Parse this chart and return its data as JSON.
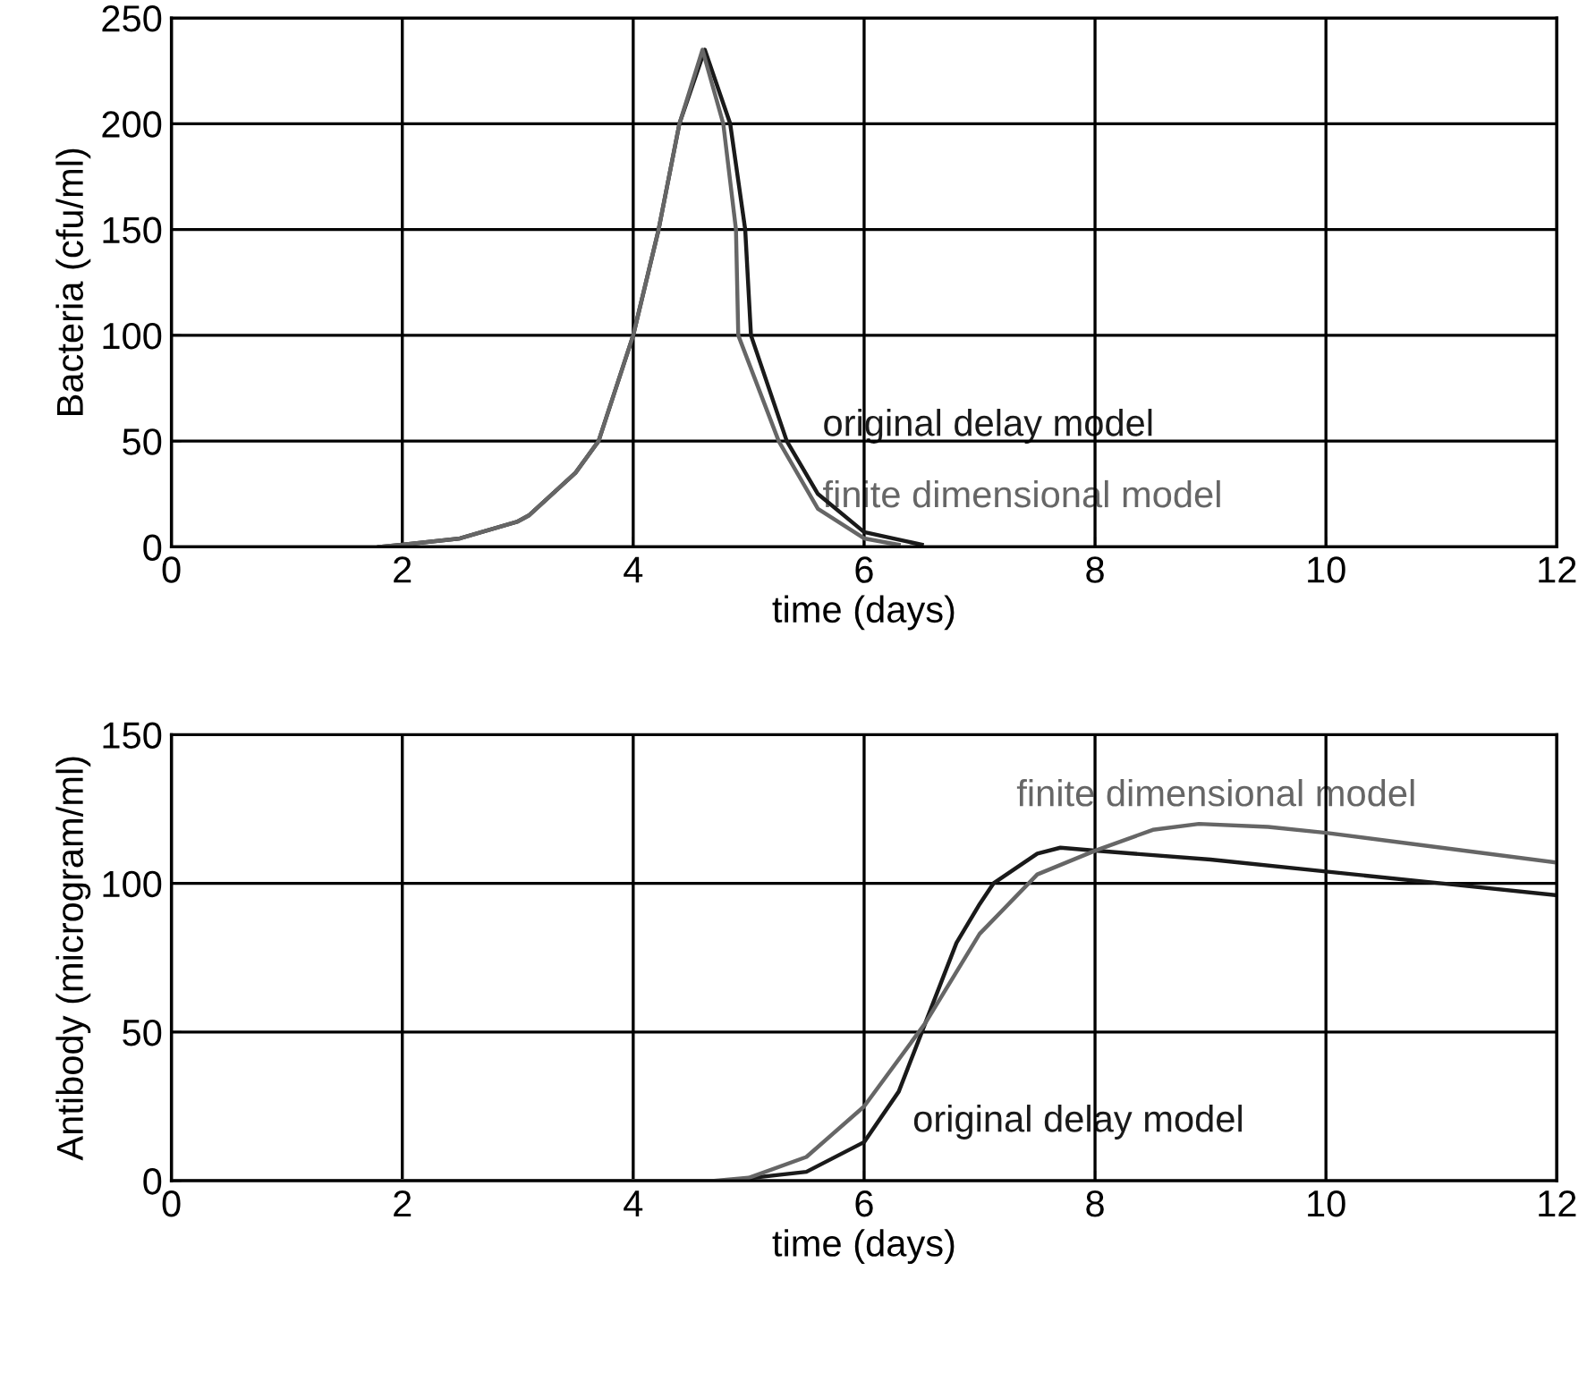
{
  "chart_data": [
    {
      "type": "line",
      "xlabel": "time (days)",
      "ylabel": "Bacteria (cfu/ml)",
      "xlim": [
        0,
        12
      ],
      "xticks": [
        0,
        2,
        4,
        6,
        8,
        10,
        12
      ],
      "ylim": [
        0,
        250
      ],
      "yticks": [
        0,
        50,
        100,
        150,
        200,
        250
      ],
      "grid": true,
      "series": [
        {
          "name": "original delay model",
          "color": "#1a1a1a",
          "x": [
            1.8,
            2.0,
            2.5,
            3.0,
            3.1,
            3.5,
            3.7,
            4.0,
            4.22,
            4.4,
            4.62,
            4.84,
            4.97,
            5.02,
            5.33,
            5.6,
            6.0,
            6.5
          ],
          "values": [
            0,
            1,
            4,
            12,
            15,
            35,
            50,
            100,
            150,
            200,
            235,
            200,
            150,
            100,
            50,
            25,
            7,
            1
          ]
        },
        {
          "name": "finite dimensional model",
          "color": "#666666",
          "x": [
            1.8,
            2.0,
            2.5,
            3.0,
            3.1,
            3.5,
            3.7,
            4.0,
            4.22,
            4.4,
            4.6,
            4.78,
            4.89,
            4.91,
            5.26,
            5.6,
            6.0,
            6.3
          ],
          "values": [
            0,
            1,
            4,
            12,
            15,
            35,
            50,
            100,
            150,
            200,
            235,
            200,
            150,
            100,
            50,
            18,
            4,
            1
          ]
        }
      ]
    },
    {
      "type": "line",
      "xlabel": "time (days)",
      "ylabel": "Antibody (microgram/ml)",
      "xlim": [
        0,
        12
      ],
      "xticks": [
        0,
        2,
        4,
        6,
        8,
        10,
        12
      ],
      "ylim": [
        0,
        150
      ],
      "yticks": [
        0,
        50,
        100,
        150
      ],
      "grid": true,
      "series": [
        {
          "name": "original delay model",
          "color": "#1a1a1a",
          "x": [
            0,
            4.8,
            5.5,
            6.0,
            6.3,
            6.53,
            6.8,
            7.0,
            7.12,
            7.5,
            7.7,
            8.0,
            9.0,
            10.0,
            11.0,
            12.0
          ],
          "values": [
            0,
            0,
            3,
            13,
            30,
            53,
            80,
            93,
            100,
            110,
            112,
            111,
            108,
            104,
            100,
            96
          ]
        },
        {
          "name": "finite dimensional model",
          "color": "#666666",
          "x": [
            0,
            4.7,
            5.0,
            5.5,
            6.0,
            6.53,
            7.0,
            7.5,
            8.0,
            8.5,
            8.9,
            9.5,
            10.0,
            11.0,
            12.0
          ],
          "values": [
            0,
            0,
            1,
            8,
            25,
            53,
            83,
            103,
            111,
            118,
            120,
            119,
            117,
            112,
            107
          ]
        }
      ]
    }
  ]
}
